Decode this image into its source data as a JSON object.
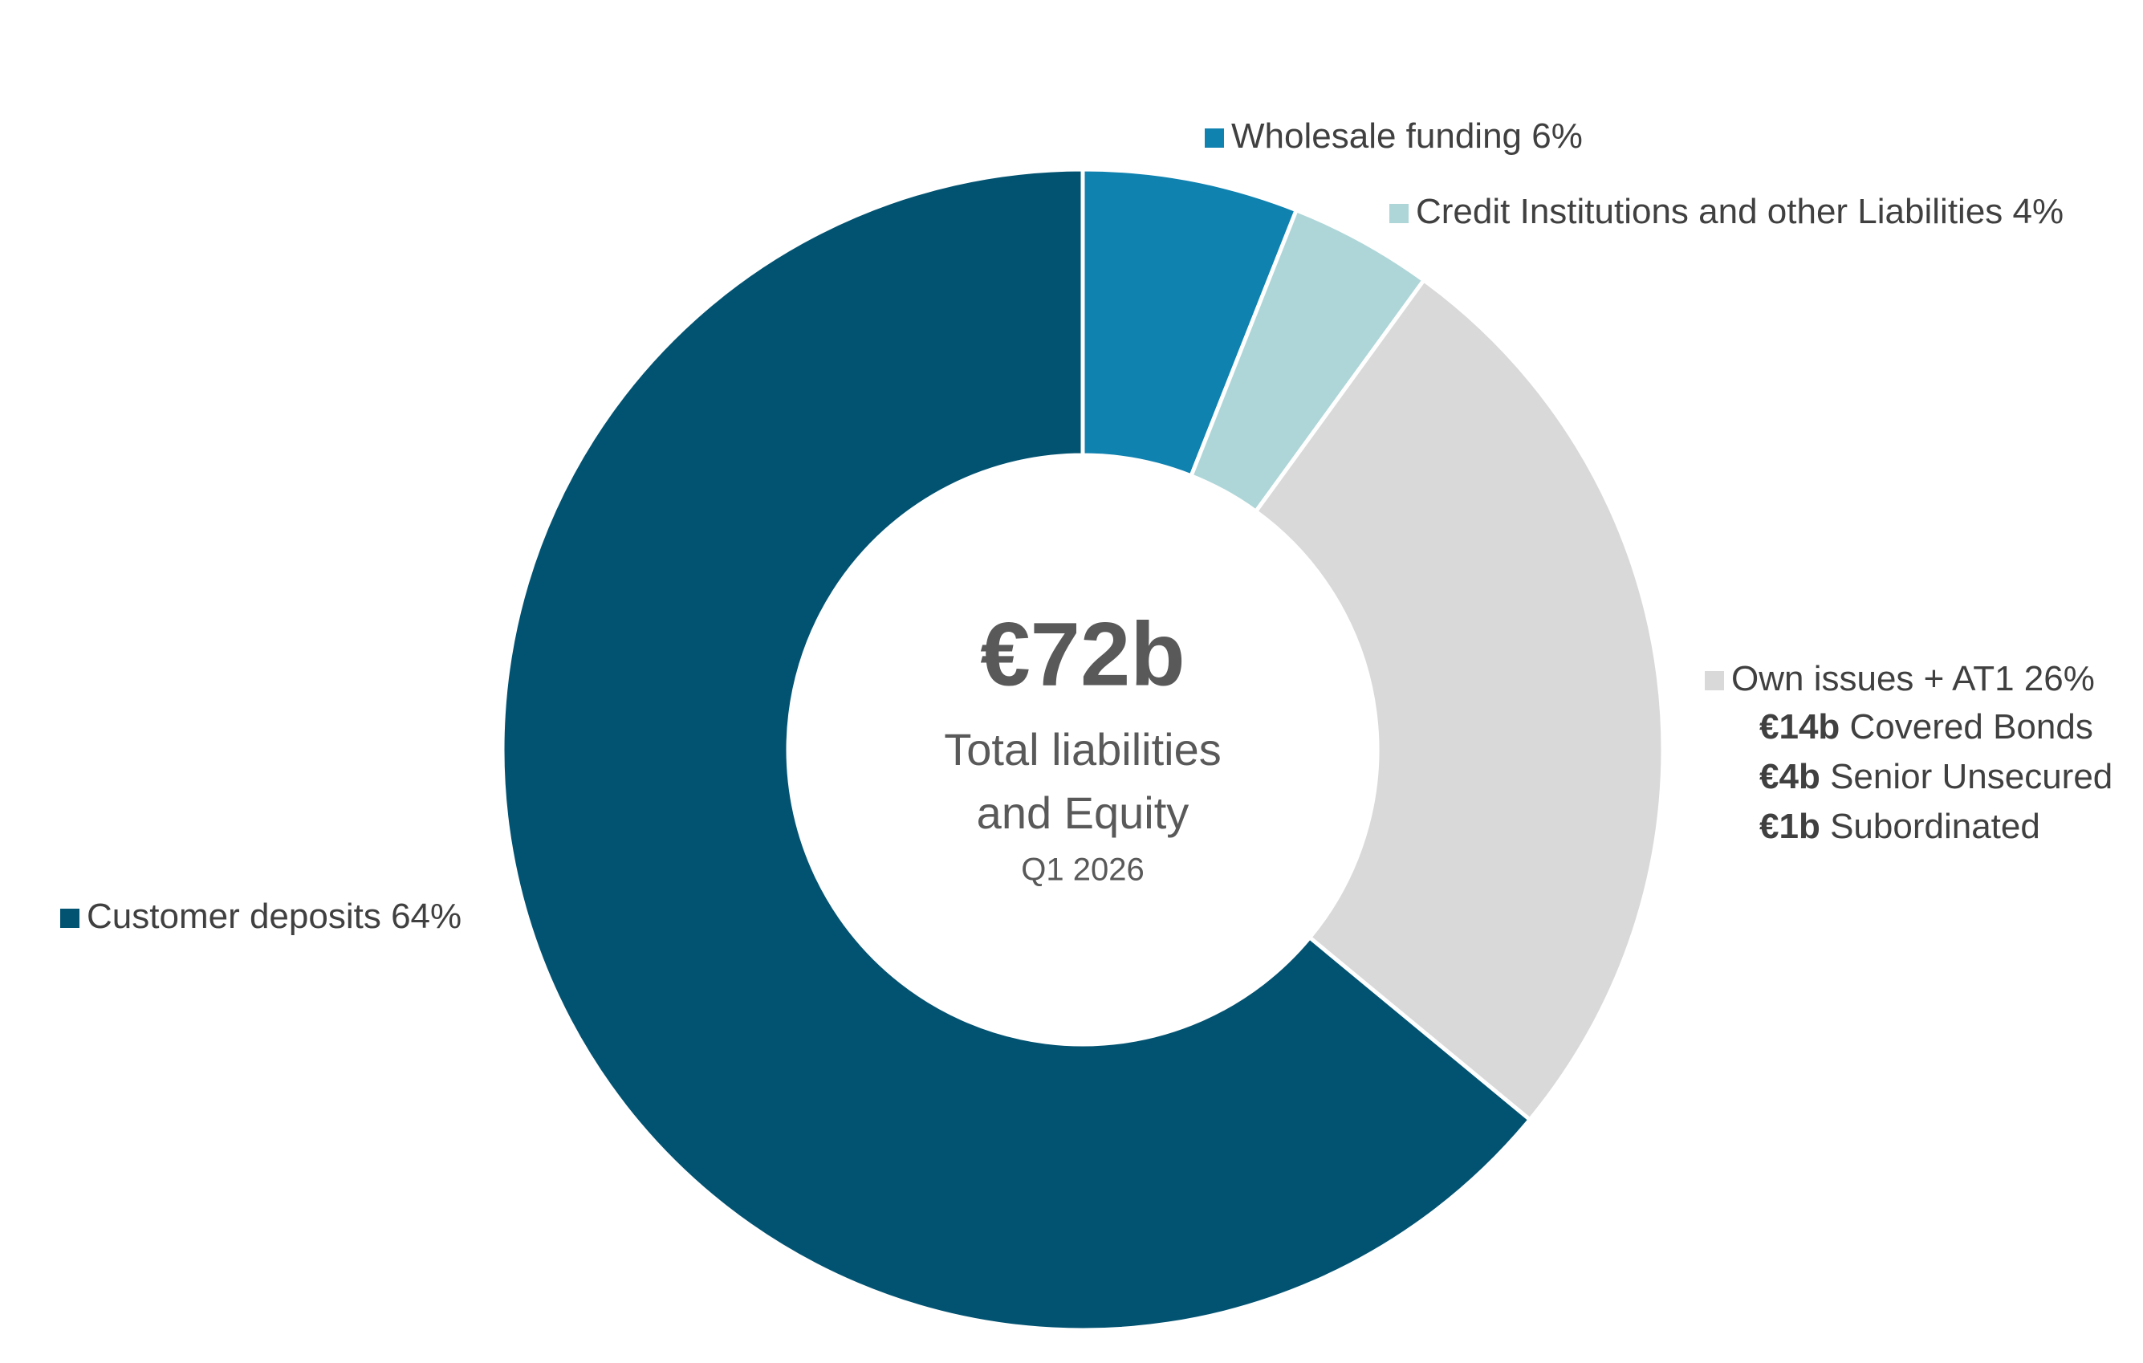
{
  "chart_data": {
    "type": "donut",
    "categories": [
      "Wholesale funding",
      "Credit Institutions and other Liabilities",
      "Own issues + AT1",
      "Customer deposits"
    ],
    "values": [
      6,
      4,
      26,
      64
    ],
    "value_labels": [
      "6%",
      "4%",
      "26%",
      "64%"
    ],
    "colors": [
      "#0f82b0",
      "#aed6d8",
      "#d9d9d9",
      "#025372"
    ],
    "center_title": "€72b",
    "center_subtitle": [
      "Total liabilities",
      "and Equity"
    ],
    "center_note": "Q1 2026",
    "breakdown": [
      {
        "amount": "€14b",
        "label": "Covered Bonds"
      },
      {
        "amount": "€4b",
        "label": "Senior Unsecured"
      },
      {
        "amount": "€1b",
        "label": "Subordinated"
      }
    ]
  }
}
